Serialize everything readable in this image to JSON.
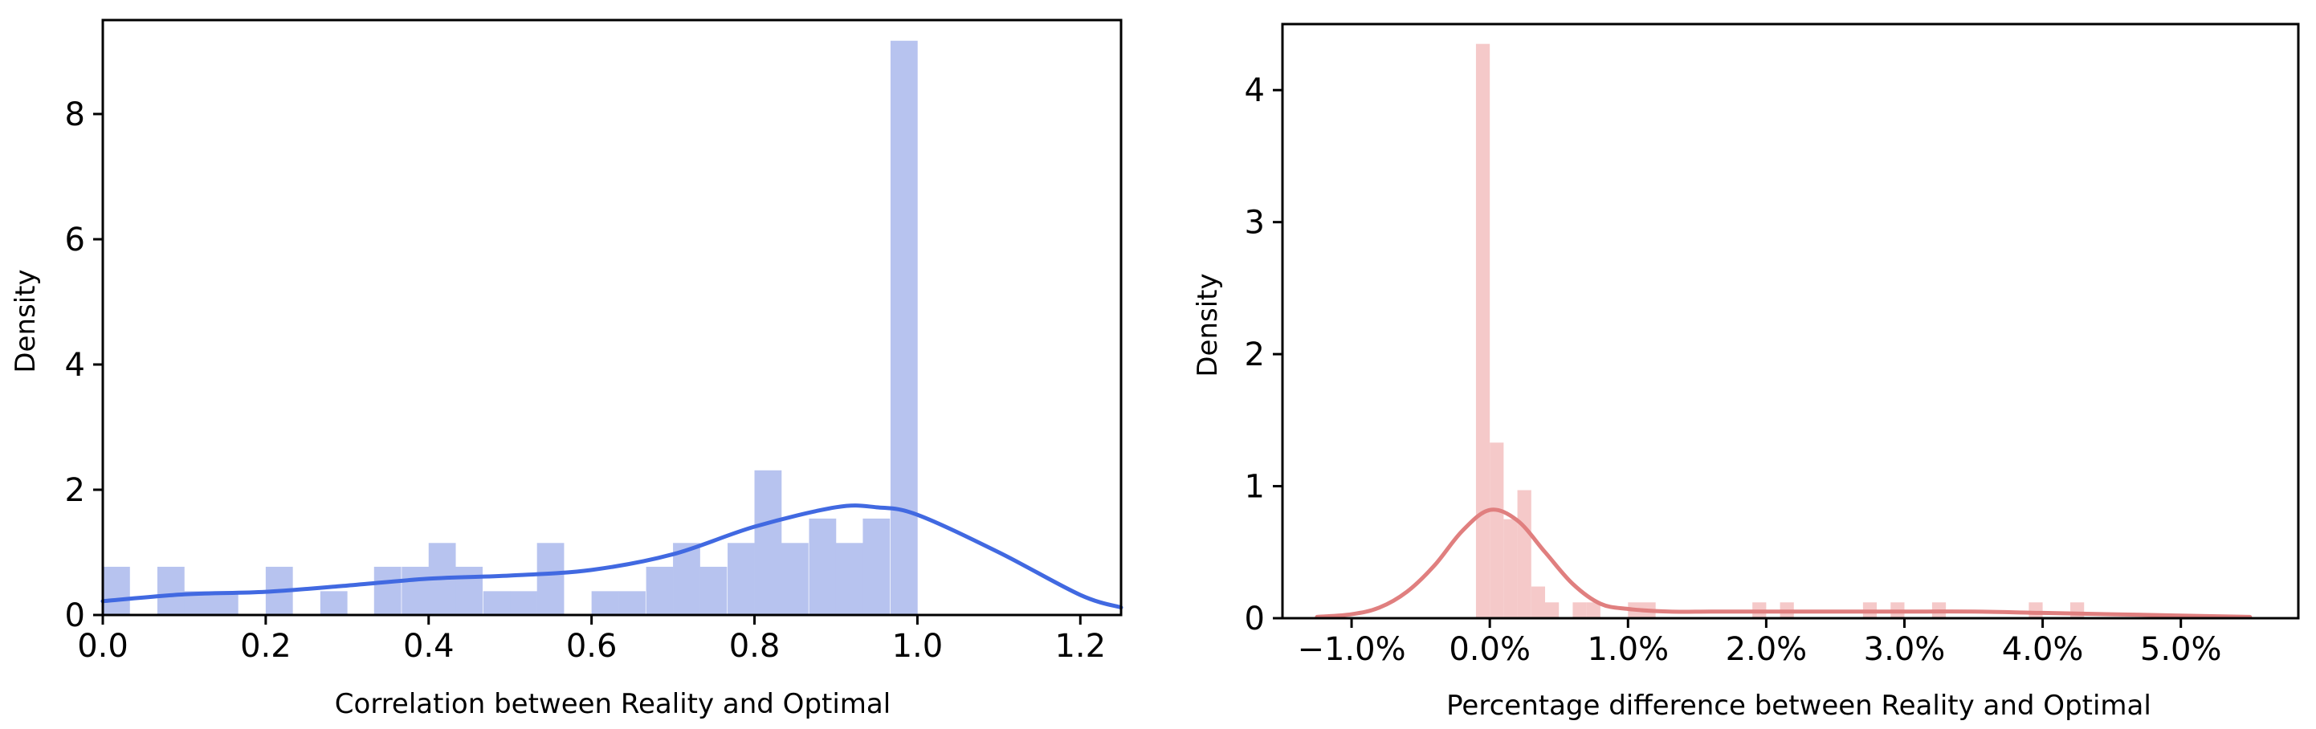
{
  "chart_data": [
    {
      "type": "bar",
      "subtype": "histogram_with_kde",
      "title": "",
      "xlabel": "Correlation between Reality and Optimal",
      "ylabel": "Density",
      "xlim": [
        0.0,
        1.25
      ],
      "ylim": [
        0,
        9.5
      ],
      "grid": false,
      "color": "#4169e1",
      "bar_color": "#b7c3ef",
      "xticks": [
        0.0,
        0.2,
        0.4,
        0.6,
        0.8,
        1.0,
        1.2
      ],
      "xtick_labels": [
        "0.0",
        "0.2",
        "0.4",
        "0.6",
        "0.8",
        "1.0",
        "1.2"
      ],
      "yticks": [
        0,
        2,
        4,
        6,
        8
      ],
      "ytick_labels": [
        "0",
        "2",
        "4",
        "6",
        "8"
      ],
      "bin_width": 0.0333,
      "bins": [
        {
          "x": 0.0,
          "density": 0.77
        },
        {
          "x": 0.067,
          "density": 0.77
        },
        {
          "x": 0.1,
          "density": 0.38
        },
        {
          "x": 0.133,
          "density": 0.38
        },
        {
          "x": 0.2,
          "density": 0.77
        },
        {
          "x": 0.267,
          "density": 0.38
        },
        {
          "x": 0.333,
          "density": 0.77
        },
        {
          "x": 0.367,
          "density": 0.77
        },
        {
          "x": 0.4,
          "density": 1.15
        },
        {
          "x": 0.433,
          "density": 0.77
        },
        {
          "x": 0.467,
          "density": 0.38
        },
        {
          "x": 0.5,
          "density": 0.38
        },
        {
          "x": 0.533,
          "density": 1.15
        },
        {
          "x": 0.6,
          "density": 0.38
        },
        {
          "x": 0.633,
          "density": 0.38
        },
        {
          "x": 0.667,
          "density": 0.77
        },
        {
          "x": 0.7,
          "density": 1.15
        },
        {
          "x": 0.733,
          "density": 0.77
        },
        {
          "x": 0.767,
          "density": 1.15
        },
        {
          "x": 0.8,
          "density": 2.31
        },
        {
          "x": 0.833,
          "density": 1.15
        },
        {
          "x": 0.867,
          "density": 1.54
        },
        {
          "x": 0.9,
          "density": 1.15
        },
        {
          "x": 0.933,
          "density": 1.54
        },
        {
          "x": 0.967,
          "density": 9.17
        }
      ],
      "kde": {
        "x": [
          0.0,
          0.1,
          0.2,
          0.3,
          0.4,
          0.5,
          0.6,
          0.7,
          0.8,
          0.9,
          0.95,
          1.0,
          1.1,
          1.2,
          1.25
        ],
        "y": [
          0.22,
          0.33,
          0.37,
          0.47,
          0.58,
          0.63,
          0.72,
          0.97,
          1.41,
          1.72,
          1.72,
          1.6,
          1.0,
          0.32,
          0.12
        ]
      }
    },
    {
      "type": "bar",
      "subtype": "histogram_with_kde",
      "title": "",
      "xlabel": "Percentage difference between Reality and Optimal",
      "ylabel": "Density",
      "xlim": [
        -1.5,
        5.85
      ],
      "ylim": [
        0,
        4.5
      ],
      "grid": false,
      "color": "#e07f7f",
      "bar_color": "#f5c9c9",
      "xticks": [
        -1.0,
        0.0,
        1.0,
        2.0,
        3.0,
        4.0,
        5.0
      ],
      "xtick_labels": [
        "−1.0%",
        "0.0%",
        "1.0%",
        "2.0%",
        "3.0%",
        "4.0%",
        "5.0%"
      ],
      "yticks": [
        0,
        1,
        2,
        3,
        4
      ],
      "ytick_labels": [
        "0",
        "1",
        "2",
        "3",
        "4"
      ],
      "bin_width": 0.1,
      "bins": [
        {
          "x": -0.1,
          "density": 4.35
        },
        {
          "x": 0.0,
          "density": 1.33
        },
        {
          "x": 0.1,
          "density": 0.75
        },
        {
          "x": 0.2,
          "density": 0.97
        },
        {
          "x": 0.3,
          "density": 0.24
        },
        {
          "x": 0.4,
          "density": 0.12
        },
        {
          "x": 0.6,
          "density": 0.12
        },
        {
          "x": 0.7,
          "density": 0.12
        },
        {
          "x": 1.0,
          "density": 0.12
        },
        {
          "x": 1.1,
          "density": 0.12
        },
        {
          "x": 1.9,
          "density": 0.12
        },
        {
          "x": 2.1,
          "density": 0.12
        },
        {
          "x": 2.7,
          "density": 0.12
        },
        {
          "x": 2.9,
          "density": 0.12
        },
        {
          "x": 3.2,
          "density": 0.12
        },
        {
          "x": 3.9,
          "density": 0.12
        },
        {
          "x": 4.2,
          "density": 0.12
        }
      ],
      "kde": {
        "x": [
          -1.25,
          -1.0,
          -0.8,
          -0.6,
          -0.4,
          -0.2,
          0.0,
          0.2,
          0.4,
          0.6,
          0.8,
          1.0,
          1.3,
          1.6,
          2.0,
          2.5,
          3.0,
          3.5,
          4.0,
          4.5,
          5.0,
          5.5
        ],
        "y": [
          0.01,
          0.03,
          0.08,
          0.2,
          0.4,
          0.66,
          0.82,
          0.74,
          0.5,
          0.26,
          0.11,
          0.07,
          0.05,
          0.05,
          0.05,
          0.05,
          0.05,
          0.05,
          0.04,
          0.03,
          0.02,
          0.01
        ]
      }
    }
  ]
}
